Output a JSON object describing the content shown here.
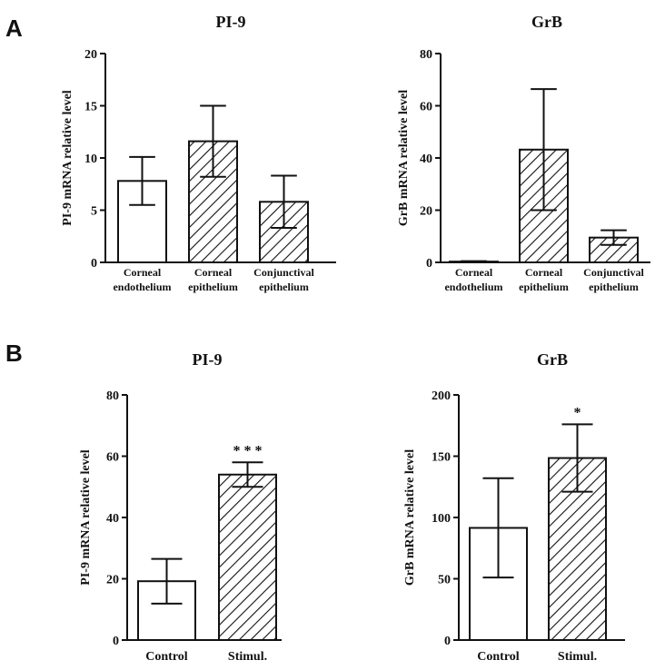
{
  "panels": [
    {
      "letter": "A"
    },
    {
      "letter": "B"
    }
  ],
  "chart_data": [
    {
      "type": "bar",
      "panel": "A",
      "title": "PI-9",
      "ylabel": "PI-9 mRNA relative level",
      "xlabel": "",
      "ylim": [
        0,
        20
      ],
      "yticks": [
        0,
        5,
        10,
        15,
        20
      ],
      "categories": [
        [
          "Corneal",
          "endothelium"
        ],
        [
          "Corneal",
          "epithelium"
        ],
        [
          "Conjunctival",
          "epithelium"
        ]
      ],
      "values": [
        7.8,
        11.6,
        5.8
      ],
      "errors": [
        2.3,
        3.4,
        2.5
      ],
      "fills": [
        "open",
        "hatched",
        "hatched"
      ],
      "significance": [
        "",
        "",
        ""
      ]
    },
    {
      "type": "bar",
      "panel": "A",
      "title": "GrB",
      "ylabel": "GrB mRNA relative level",
      "xlabel": "",
      "ylim": [
        0,
        80
      ],
      "yticks": [
        0,
        20,
        40,
        60,
        80
      ],
      "categories": [
        [
          "Corneal",
          "endothelium"
        ],
        [
          "Corneal",
          "epithelium"
        ],
        [
          "Conjunctival",
          "epithelium"
        ]
      ],
      "values": [
        0.3,
        43.2,
        9.5
      ],
      "errors": [
        0.2,
        23.2,
        2.8
      ],
      "fills": [
        "open",
        "hatched",
        "hatched"
      ],
      "significance": [
        "",
        "",
        ""
      ]
    },
    {
      "type": "bar",
      "panel": "B",
      "title": "PI-9",
      "ylabel": "PI-9 mRNA relative level",
      "xlabel": "",
      "ylim": [
        0,
        80
      ],
      "yticks": [
        0,
        20,
        40,
        60,
        80
      ],
      "categories": [
        [
          "Control"
        ],
        [
          "Stimul."
        ]
      ],
      "values": [
        19.2,
        54.0
      ],
      "errors": [
        7.3,
        4.0
      ],
      "fills": [
        "open",
        "hatched"
      ],
      "significance": [
        "",
        "* * *"
      ]
    },
    {
      "type": "bar",
      "panel": "B",
      "title": "GrB",
      "ylabel": "GrB mRNA relative level",
      "xlabel": "",
      "ylim": [
        0,
        200
      ],
      "yticks": [
        0,
        50,
        100,
        150,
        200
      ],
      "categories": [
        [
          "Control"
        ],
        [
          "Stimul."
        ]
      ],
      "values": [
        91.5,
        148.5
      ],
      "errors": [
        40.5,
        27.5
      ],
      "fills": [
        "open",
        "hatched"
      ],
      "significance": [
        "",
        "*"
      ]
    }
  ]
}
